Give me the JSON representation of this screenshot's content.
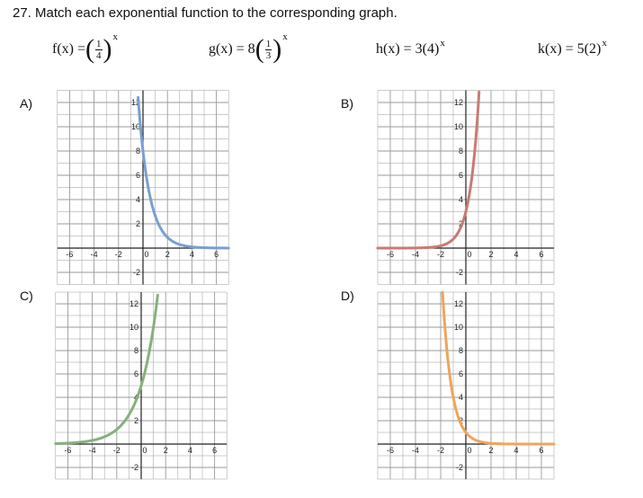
{
  "question": {
    "title": "27. Match each exponential function to the corresponding graph."
  },
  "functions": [
    {
      "lhs": "f(x) = ",
      "coef": "",
      "num": "1",
      "den": "4",
      "exp": "x"
    },
    {
      "lhs": "g(x) = 8",
      "coef": "",
      "num": "1",
      "den": "3",
      "exp": "x"
    },
    {
      "text": "h(x) = 3(4)",
      "exp": "x"
    },
    {
      "text": "k(x) = 5(2)",
      "exp": "x"
    }
  ],
  "graphs": [
    {
      "label": "A)",
      "color": "#7a9fd1",
      "curve": "decay",
      "a": 8,
      "b": 0.3333
    },
    {
      "label": "B)",
      "color": "#c97a74",
      "curve": "growth",
      "a": 3,
      "b": 4
    },
    {
      "label": "C)",
      "color": "#86b07c",
      "curve": "growth",
      "a": 5,
      "b": 2
    },
    {
      "label": "D)",
      "color": "#f0a45c",
      "curve": "decay",
      "a": 1,
      "b": 0.25
    }
  ],
  "axis": {
    "x_ticks": [
      "-6",
      "-4",
      "-2",
      "0",
      "2",
      "4",
      "6"
    ],
    "y_ticks": [
      "12",
      "10",
      "8",
      "6",
      "4",
      "2",
      "-2"
    ]
  }
}
